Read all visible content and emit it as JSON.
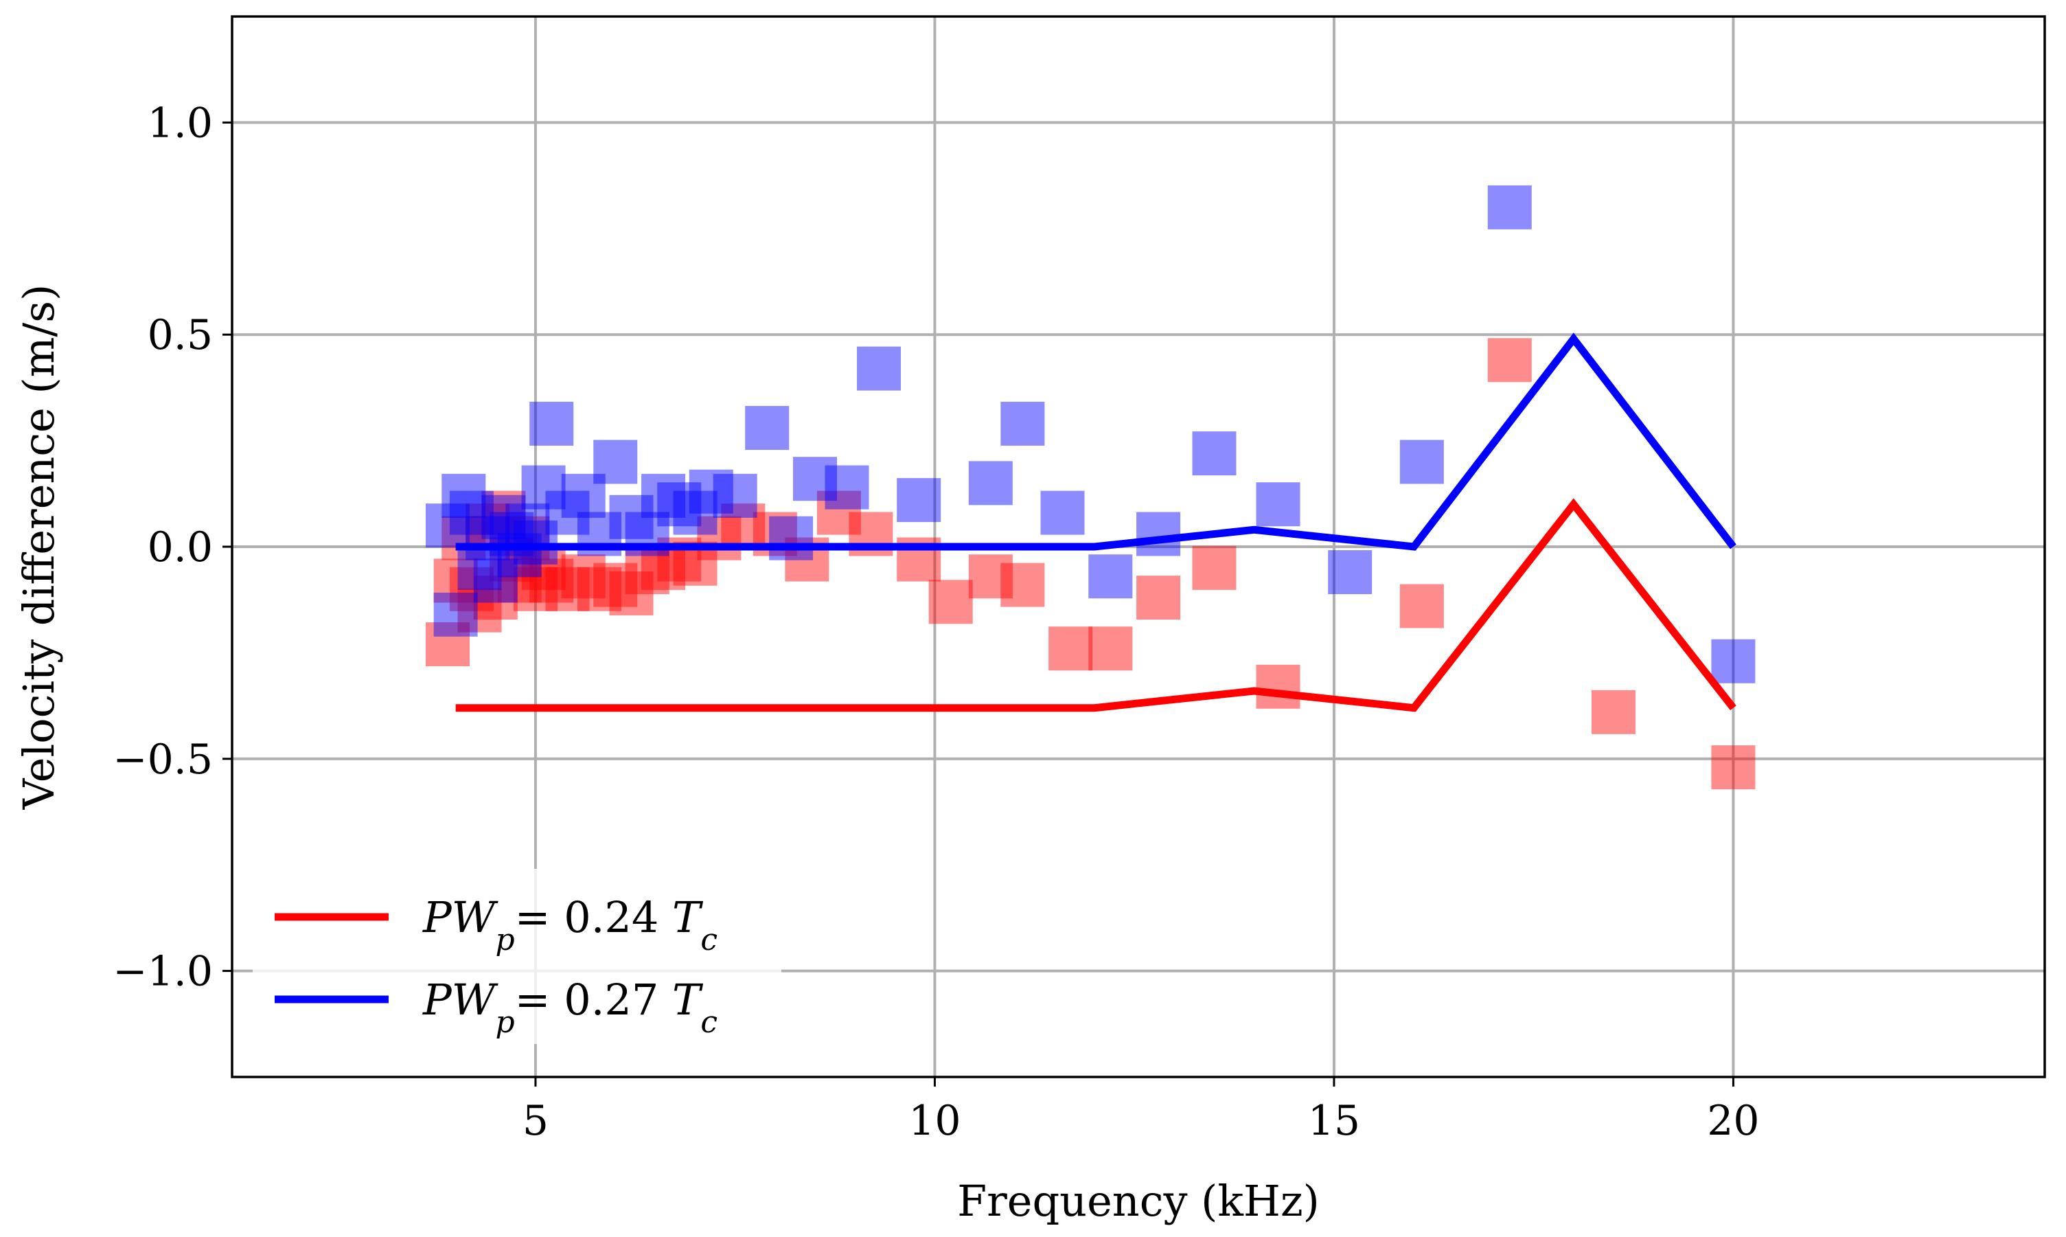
{
  "chart_data": {
    "type": "scatter",
    "xlabel": "Frequency (kHz)",
    "ylabel": "Velocity difference (m/s)",
    "xlim": [
      1.2,
      23.9
    ],
    "ylim": [
      -1.25,
      1.25
    ],
    "xticks": [
      5,
      10,
      15,
      20
    ],
    "yticks": [
      1.0,
      0.5,
      0.0,
      -0.5,
      -1.0
    ],
    "xtick_labels": [
      "5",
      "10",
      "15",
      "20"
    ],
    "ytick_labels": [
      "1.0",
      "0.5",
      "0.0",
      "−0.5",
      "−1.0"
    ],
    "grid": true,
    "legend_position": "lower-left",
    "series": [
      {
        "name": "PW_p = 0.24 T_c",
        "color": "#ff0000",
        "marker": "square",
        "marker_alpha": 0.45,
        "line": {
          "x": [
            4.0,
            12.0,
            14.0,
            16.0,
            18.0,
            20.0
          ],
          "y": [
            -0.38,
            -0.38,
            -0.34,
            -0.38,
            0.1,
            -0.38
          ]
        },
        "points": {
          "x": [
            3.9,
            4.0,
            4.1,
            4.2,
            4.3,
            4.4,
            4.5,
            4.6,
            4.7,
            4.8,
            4.9,
            5.0,
            5.1,
            5.2,
            5.4,
            5.6,
            5.8,
            6.0,
            6.2,
            6.4,
            6.6,
            6.8,
            7.0,
            7.3,
            7.6,
            8.0,
            8.4,
            8.8,
            9.2,
            9.8,
            10.2,
            10.7,
            11.1,
            11.7,
            12.2,
            12.8,
            13.5,
            14.3,
            16.1,
            17.2,
            18.5,
            20.0
          ],
          "y": [
            -0.23,
            -0.08,
            0.02,
            -0.1,
            -0.15,
            0.05,
            -0.12,
            0.08,
            -0.03,
            -0.08,
            0.02,
            -0.1,
            -0.05,
            -0.08,
            -0.1,
            -0.07,
            -0.1,
            -0.09,
            -0.11,
            -0.06,
            -0.05,
            -0.03,
            -0.04,
            0.02,
            0.05,
            0.03,
            -0.03,
            0.08,
            0.03,
            -0.03,
            -0.13,
            -0.07,
            -0.09,
            -0.24,
            -0.24,
            -0.12,
            -0.05,
            -0.33,
            -0.14,
            0.44,
            -0.39,
            -0.52
          ]
        }
      },
      {
        "name": "PW_p = 0.27 T_c",
        "color": "#0000ff",
        "marker": "square",
        "marker_alpha": 0.45,
        "line": {
          "x": [
            4.0,
            12.0,
            14.0,
            16.0,
            18.0,
            20.0
          ],
          "y": [
            0.0,
            0.0,
            0.04,
            0.0,
            0.49,
            0.0
          ]
        },
        "points": {
          "x": [
            3.9,
            4.0,
            4.1,
            4.2,
            4.3,
            4.4,
            4.5,
            4.6,
            4.7,
            4.8,
            4.9,
            5.0,
            5.1,
            5.2,
            5.4,
            5.6,
            5.8,
            6.0,
            6.2,
            6.4,
            6.6,
            6.8,
            7.0,
            7.2,
            7.5,
            7.9,
            8.2,
            8.5,
            8.9,
            9.3,
            9.8,
            10.7,
            11.1,
            11.6,
            12.2,
            12.8,
            13.5,
            14.3,
            15.2,
            16.1,
            17.2,
            20.0
          ],
          "y": [
            0.05,
            -0.16,
            0.12,
            0.08,
            -0.05,
            0.02,
            -0.08,
            0.07,
            0.03,
            -0.02,
            0.05,
            0.01,
            0.14,
            0.29,
            0.08,
            0.12,
            0.03,
            0.2,
            0.07,
            0.03,
            0.12,
            0.1,
            0.08,
            0.13,
            0.12,
            0.28,
            0.02,
            0.16,
            0.14,
            0.42,
            0.11,
            0.15,
            0.29,
            0.08,
            -0.07,
            0.03,
            0.22,
            0.1,
            -0.06,
            0.2,
            0.8,
            -0.27
          ]
        }
      }
    ],
    "legend": [
      {
        "base": "PW",
        "sub": "p",
        "rest": "= 0.24 ",
        "tvar": "T",
        "tsub": "c",
        "color": "#ff0000"
      },
      {
        "base": "PW",
        "sub": "p",
        "rest": "= 0.27 ",
        "tvar": "T",
        "tsub": "c",
        "color": "#0000ff"
      }
    ]
  }
}
